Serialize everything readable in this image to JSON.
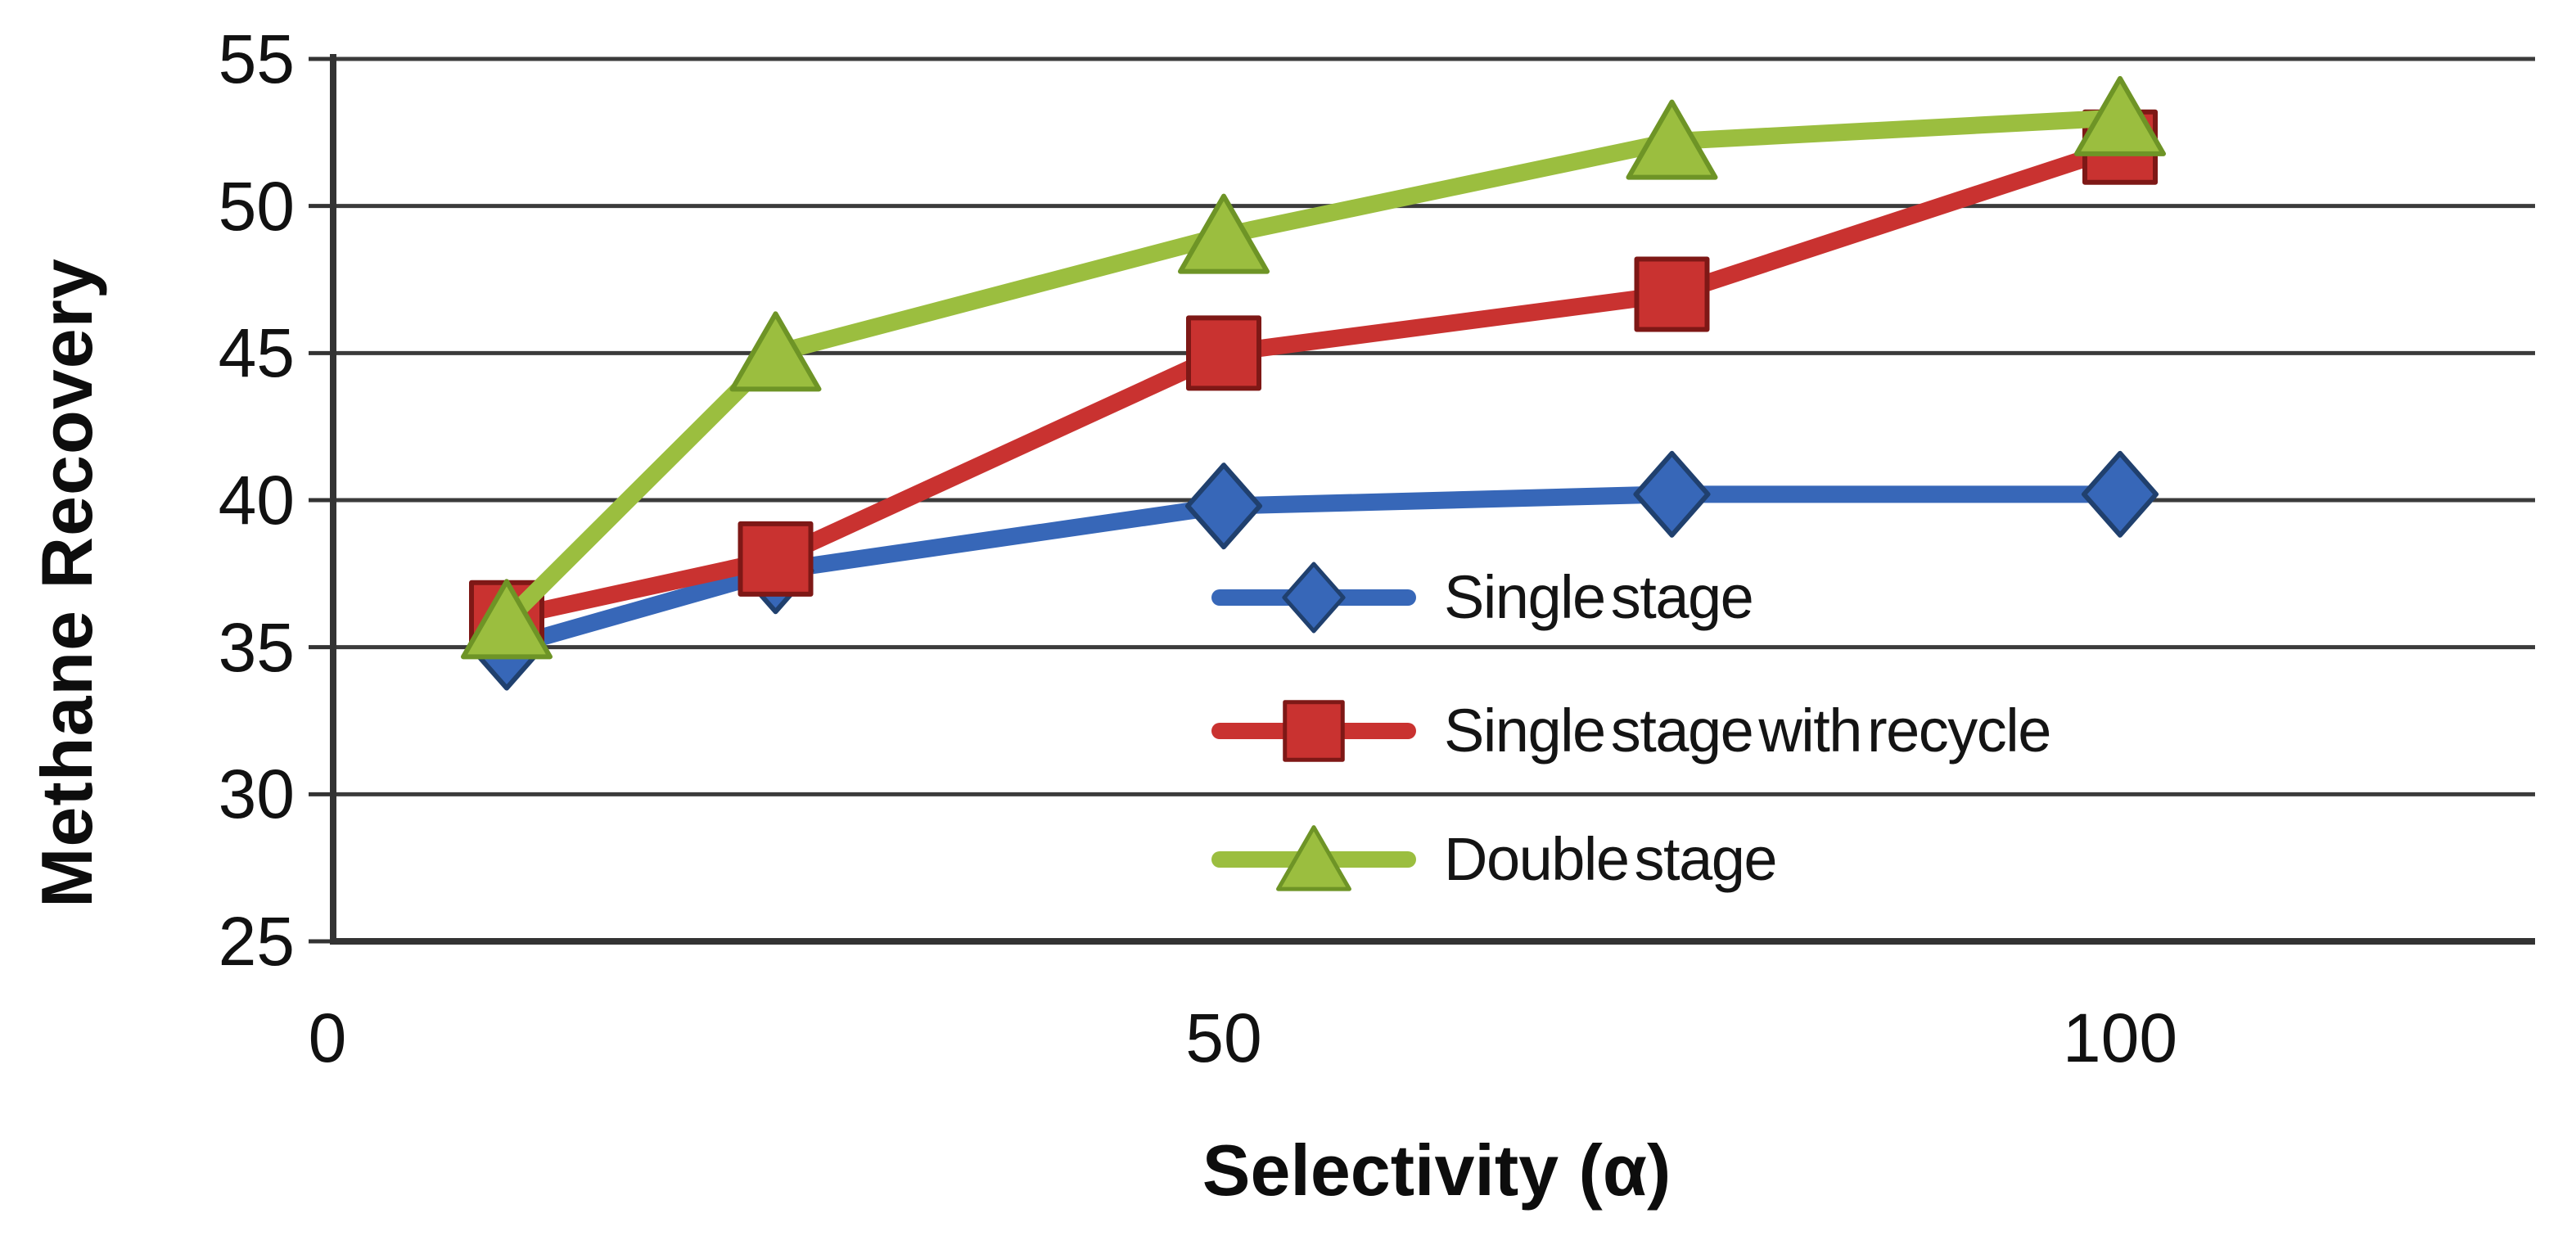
{
  "chart_data": {
    "type": "line",
    "title": "",
    "xlabel": "Selectivity (α)",
    "ylabel": "Methane Recovery",
    "x": [
      10,
      25,
      50,
      75,
      100
    ],
    "series": [
      {
        "name": "Single stage",
        "marker": "diamond",
        "color": "#3767b8",
        "edge": "#20406e",
        "values": [
          35.0,
          37.6,
          39.8,
          40.2,
          40.2
        ]
      },
      {
        "name": "Single stage with recycle",
        "marker": "square",
        "color": "#c93230",
        "edge": "#7e1816",
        "values": [
          36.0,
          38.0,
          45.0,
          47.0,
          52.0
        ]
      },
      {
        "name": "Double stage",
        "marker": "triangle",
        "color": "#9bbe3f",
        "edge": "#6e9426",
        "values": [
          35.9,
          45.0,
          49.0,
          52.2,
          53.0
        ]
      }
    ],
    "xticks": [
      0,
      50,
      100
    ],
    "yticks": [
      25,
      30,
      35,
      40,
      45,
      50,
      55
    ],
    "xlim": [
      0,
      123
    ],
    "ylim": [
      25,
      55
    ],
    "grid": "horizontal-only",
    "grid_color": "#3b3b3b",
    "axis_color": "#333333",
    "text_color": "#111111",
    "background": "#ffffff",
    "legend_position": "inside-center-right"
  }
}
